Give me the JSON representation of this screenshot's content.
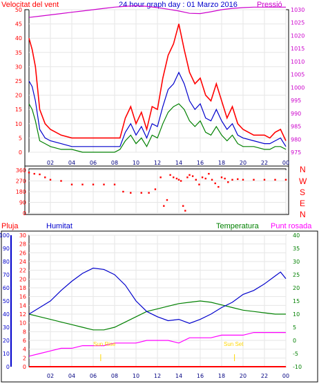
{
  "header": {
    "title": "24 hour graph day : 01 Marzo 2016",
    "wind_label": "Velocitat del vent",
    "pressure_label": "Pressió"
  },
  "middle": {
    "compass": [
      "N",
      "W",
      "S",
      "E",
      "N"
    ]
  },
  "bottom": {
    "rain_label": "Pluja",
    "humidity_label": "Humitat",
    "temperature_label": "Temperatura",
    "dewpoint_label": "Punt rosada",
    "sunrise_label": "Sun Rise",
    "sunset_label": "Sun Set"
  },
  "colors": {
    "wind_gust": "#ff0000",
    "wind_avg_blue": "#0000cc",
    "wind_avg_green": "#008000",
    "pressure": "#cc00cc",
    "direction": "#ff0000",
    "humidity": "#0000cc",
    "temperature": "#008000",
    "dewpoint": "#ff00ff",
    "rain": "#ff0000",
    "sun": "#ffd700"
  },
  "chart_data": [
    {
      "type": "line",
      "name": "wind_and_pressure",
      "x_ticks": [
        "02",
        "04",
        "06",
        "08",
        "10",
        "12",
        "14",
        "16",
        "18",
        "20",
        "22",
        "00"
      ],
      "xlim": [
        0,
        24
      ],
      "y_left": {
        "ticks": [
          0,
          5,
          10,
          15,
          20,
          25,
          30,
          35,
          40,
          45,
          50
        ],
        "ylim": [
          0,
          50
        ]
      },
      "y_right": {
        "ticks": [
          975,
          980,
          985,
          990,
          995,
          1000,
          1005,
          1010,
          1015,
          1020,
          1025,
          1030
        ],
        "ylim": [
          975,
          1030
        ]
      },
      "series": [
        {
          "key": "gust",
          "axis": "left",
          "x": [
            0,
            0.3,
            0.6,
            1,
            1.5,
            2,
            3,
            4,
            5,
            6,
            7,
            8,
            8.5,
            9,
            9.5,
            10,
            10.5,
            11,
            11.5,
            12,
            12.5,
            13,
            13.5,
            14,
            14.5,
            15,
            15.5,
            16,
            16.5,
            17,
            17.5,
            18,
            18.5,
            19,
            19.5,
            20,
            21,
            22,
            22.5,
            23,
            23.5,
            24
          ],
          "values": [
            40,
            36,
            30,
            15,
            10,
            8,
            6,
            5,
            5,
            5,
            5,
            5,
            5,
            12,
            16,
            10,
            14,
            8,
            16,
            15,
            26,
            34,
            38,
            45,
            36,
            28,
            24,
            26,
            20,
            18,
            24,
            18,
            12,
            16,
            10,
            8,
            6,
            6,
            5,
            7,
            8,
            4
          ]
        },
        {
          "key": "avg",
          "axis": "left",
          "x": [
            0,
            0.3,
            0.6,
            1,
            1.5,
            2,
            3,
            4,
            5,
            6,
            7,
            8,
            8.5,
            9,
            9.5,
            10,
            10.5,
            11,
            11.5,
            12,
            12.5,
            13,
            13.5,
            14,
            14.5,
            15,
            15.5,
            16,
            16.5,
            17,
            17.5,
            18,
            18.5,
            19,
            19.5,
            20,
            21,
            22,
            22.5,
            23,
            23.5,
            24
          ],
          "values": [
            25,
            23,
            18,
            8,
            5,
            4,
            3,
            2,
            2,
            2,
            2,
            2,
            2,
            7,
            10,
            6,
            9,
            5,
            10,
            9,
            16,
            22,
            24,
            28,
            24,
            18,
            15,
            17,
            12,
            11,
            15,
            11,
            8,
            10,
            6,
            5,
            4,
            3,
            3,
            4,
            5,
            2
          ]
        },
        {
          "key": "avg2",
          "axis": "left",
          "x": [
            0,
            0.3,
            0.6,
            1,
            1.5,
            2,
            3,
            4,
            5,
            6,
            7,
            8,
            8.5,
            9,
            9.5,
            10,
            10.5,
            11,
            11.5,
            12,
            12.5,
            13,
            13.5,
            14,
            14.5,
            15,
            15.5,
            16,
            16.5,
            17,
            17.5,
            18,
            18.5,
            19,
            19.5,
            20,
            21,
            22,
            22.5,
            23,
            23.5,
            24
          ],
          "values": [
            17,
            15,
            11,
            4,
            3,
            2,
            1,
            1,
            0,
            0,
            0,
            0,
            1,
            4,
            6,
            3,
            5,
            2,
            6,
            5,
            10,
            14,
            16,
            17,
            15,
            11,
            9,
            11,
            7,
            6,
            9,
            6,
            4,
            6,
            3,
            2,
            2,
            1,
            1,
            2,
            2,
            1
          ]
        },
        {
          "key": "pressure",
          "axis": "right",
          "x": [
            0,
            1,
            2,
            3,
            4,
            5,
            6,
            7,
            8,
            9,
            10,
            11,
            12,
            13,
            14,
            15,
            16,
            17,
            18,
            19,
            20,
            21,
            22,
            23,
            24
          ],
          "values": [
            1027,
            1027.5,
            1028,
            1028.5,
            1029,
            1029.5,
            1030,
            1030.5,
            1031,
            1031.3,
            1031.5,
            1031.3,
            1030.8,
            1030.2,
            1029.5,
            1028.6,
            1028.5,
            1029.2,
            1030,
            1030.5,
            1030.8,
            1031,
            1031,
            1031,
            1031
          ]
        }
      ]
    },
    {
      "type": "scatter",
      "name": "wind_direction",
      "y_ticks": [
        0,
        90,
        180,
        270,
        360
      ],
      "ylim": [
        0,
        360
      ],
      "x": [
        0,
        0.5,
        1,
        1.5,
        2,
        3,
        4,
        5,
        6,
        7,
        8,
        8.8,
        9.5,
        10.5,
        11.2,
        11.8,
        12.3,
        12.6,
        12.9,
        13.2,
        13.5,
        13.8,
        14,
        14.2,
        14.4,
        14.6,
        14.8,
        15,
        15.3,
        15.6,
        15.9,
        16.2,
        16.5,
        16.8,
        17.1,
        17.4,
        17.7,
        18,
        18.3,
        18.6,
        19,
        19.5,
        20,
        21,
        22,
        23,
        24
      ],
      "values": [
        340,
        330,
        325,
        300,
        280,
        270,
        240,
        240,
        240,
        240,
        240,
        180,
        170,
        170,
        170,
        200,
        300,
        60,
        110,
        320,
        300,
        290,
        280,
        270,
        60,
        20,
        300,
        320,
        310,
        280,
        240,
        300,
        290,
        330,
        280,
        250,
        220,
        300,
        290,
        260,
        280,
        285,
        280,
        280,
        280,
        280,
        280
      ]
    },
    {
      "type": "line",
      "name": "humidity_temperature",
      "x_ticks": [
        "02",
        "04",
        "06",
        "08",
        "10",
        "12",
        "14",
        "16",
        "18",
        "20",
        "22",
        "00"
      ],
      "xlim": [
        0,
        24
      ],
      "y_humidity": {
        "ticks": [
          0,
          10,
          20,
          30,
          40,
          50,
          60,
          70,
          80,
          90,
          100
        ],
        "ylim": [
          0,
          100
        ]
      },
      "y_rain": {
        "ticks": [
          0,
          2,
          4,
          6,
          8,
          10,
          12,
          14,
          16,
          18,
          20,
          22,
          24,
          26,
          28,
          30
        ],
        "ylim": [
          0,
          30
        ]
      },
      "y_temp": {
        "ticks": [
          -10,
          -5,
          0,
          5,
          10,
          15,
          20,
          25,
          30,
          35,
          40
        ],
        "ylim": [
          -10,
          40
        ]
      },
      "sunrise_hour": 6.7,
      "sunset_hour": 19.2,
      "series": [
        {
          "key": "humidity",
          "axis": "humidity",
          "x": [
            0,
            1,
            2,
            3,
            4,
            5,
            6,
            7,
            8,
            9,
            10,
            11,
            12,
            13,
            14,
            15,
            16,
            17,
            18,
            19,
            20,
            21,
            22,
            23,
            23.5,
            24
          ],
          "values": [
            40,
            45,
            50,
            58,
            65,
            71,
            75,
            74,
            70,
            62,
            50,
            42,
            38,
            35,
            36,
            33,
            36,
            40,
            45,
            49,
            55,
            58,
            63,
            69,
            72,
            67
          ]
        },
        {
          "key": "temperature",
          "axis": "temp",
          "x": [
            0,
            1,
            2,
            3,
            4,
            5,
            6,
            7,
            8,
            9,
            10,
            11,
            12,
            13,
            14,
            15,
            16,
            17,
            18,
            19,
            20,
            21,
            22,
            23,
            24
          ],
          "values": [
            10,
            9,
            8,
            7,
            6,
            5,
            4,
            4,
            5,
            7,
            9,
            11,
            12,
            13,
            14,
            14.5,
            15,
            14.5,
            13.5,
            12.5,
            11.5,
            11,
            10.5,
            10,
            10
          ]
        },
        {
          "key": "dewpoint",
          "axis": "temp",
          "x": [
            0,
            1,
            2,
            3,
            4,
            5,
            6,
            7,
            8,
            9,
            10,
            11,
            12,
            13,
            14,
            15,
            16,
            17,
            18,
            19,
            20,
            21,
            22,
            23,
            24
          ],
          "values": [
            -6,
            -5,
            -4,
            -3,
            -3,
            -2,
            -2,
            -2,
            -1,
            -1,
            -1,
            0,
            0,
            0,
            -1,
            1,
            1,
            1,
            2,
            2,
            2,
            3,
            3,
            3,
            3
          ]
        },
        {
          "key": "rain",
          "axis": "rain",
          "x": [
            0,
            24
          ],
          "values": [
            0,
            0
          ]
        }
      ]
    }
  ]
}
